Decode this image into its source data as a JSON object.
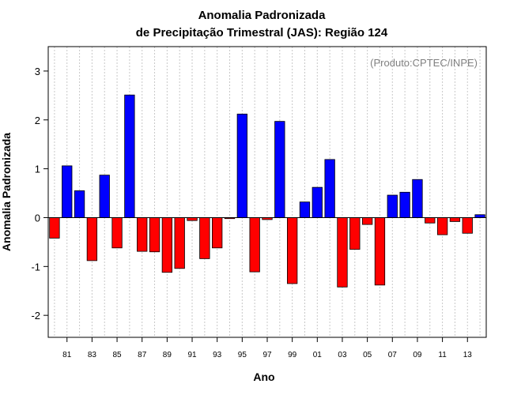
{
  "chart_data": {
    "type": "bar",
    "title": "Anomalia Padronizada",
    "subtitle": "de Precipitação Trimestral (JAS): Região 124",
    "xlabel": "Ano",
    "ylabel": "Anomalia Padronizada",
    "annotation": "(Produto:CPTEC/INPE)",
    "ylim": [
      -2.45,
      3.5
    ],
    "yticks": [
      "-2",
      "-1",
      "0",
      "1",
      "2",
      "3"
    ],
    "grid": "vertical-dotted",
    "positive_color": "#0000ff",
    "negative_color": "#ff0000",
    "categories": [
      "1980",
      "1981",
      "1982",
      "1983",
      "1984",
      "1985",
      "1986",
      "1987",
      "1988",
      "1989",
      "1990",
      "1991",
      "1992",
      "1993",
      "1994",
      "1995",
      "1996",
      "1997",
      "1998",
      "1999",
      "2000",
      "2001",
      "2002",
      "2003",
      "2004",
      "2005",
      "2006",
      "2007",
      "2008",
      "2009",
      "2010",
      "2011",
      "2012",
      "2013",
      "2014"
    ],
    "xtick_labels": [
      "81",
      "83",
      "85",
      "87",
      "89",
      "91",
      "93",
      "95",
      "97",
      "99",
      "01",
      "03",
      "05",
      "07",
      "09",
      "11",
      "13"
    ],
    "values": [
      -0.42,
      1.06,
      0.55,
      -0.88,
      0.87,
      -0.62,
      2.51,
      -0.69,
      -0.7,
      -1.12,
      -1.04,
      -0.06,
      -0.84,
      -0.62,
      -0.02,
      2.12,
      -1.11,
      -0.04,
      1.97,
      -1.35,
      0.32,
      0.62,
      1.19,
      -1.42,
      -0.65,
      -0.14,
      -1.38,
      0.46,
      0.52,
      0.78,
      -0.11,
      -0.35,
      -0.08,
      -0.32,
      0.06
    ]
  }
}
